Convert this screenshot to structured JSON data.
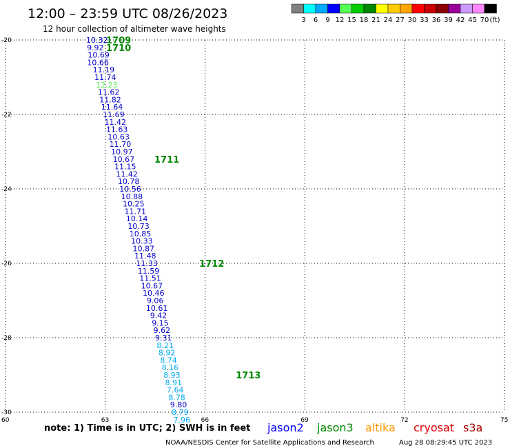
{
  "chart_data": {
    "type": "scatter",
    "title": "12:00 – 23:59 UTC 08/26/2023",
    "subtitle": "12 hour collection of altimeter wave heights",
    "xlim": [
      60,
      75
    ],
    "ylim": [
      -30,
      -20
    ],
    "x_ticks": [
      "60",
      "63",
      "66",
      "69",
      "72",
      "75"
    ],
    "y_ticks": [
      "-20",
      "-22",
      "-24",
      "-26",
      "-28",
      "-30"
    ],
    "grid": true,
    "legend": {
      "colors": [
        "#808080",
        "#00ffff",
        "#00aaff",
        "#0000ff",
        "#55ff55",
        "#00cc00",
        "#008800",
        "#ffff00",
        "#ffcc00",
        "#ffa500",
        "#ff0000",
        "#cc0000",
        "#880000",
        "#990099",
        "#cc99ff",
        "#ff88ff",
        "#000000"
      ],
      "labels": [
        "3",
        "6",
        "9",
        "12",
        "15",
        "18",
        "21",
        "24",
        "27",
        "30",
        "33",
        "36",
        "39",
        "42",
        "45",
        "70"
      ],
      "unit": "(ft)"
    },
    "series": [
      {
        "points": [
          {
            "x": 62.75,
            "y": -20.0,
            "v": "10.32"
          },
          {
            "x": 62.7,
            "y": -20.2,
            "v": "9.92"
          },
          {
            "x": 62.8,
            "y": -20.4,
            "v": "10.69"
          },
          {
            "x": 62.78,
            "y": -20.6,
            "v": "10.66"
          },
          {
            "x": 62.95,
            "y": -20.8,
            "v": "11.19"
          },
          {
            "x": 63.0,
            "y": -21.0,
            "v": "11.74"
          },
          {
            "x": 63.04,
            "y": -21.2,
            "v": "12.23"
          },
          {
            "x": 63.1,
            "y": -21.4,
            "v": "11.62"
          },
          {
            "x": 63.15,
            "y": -21.6,
            "v": "11.82"
          },
          {
            "x": 63.2,
            "y": -21.8,
            "v": "11.64"
          },
          {
            "x": 63.25,
            "y": -22.0,
            "v": "11.69"
          },
          {
            "x": 63.3,
            "y": -22.2,
            "v": "11.42"
          },
          {
            "x": 63.35,
            "y": -22.4,
            "v": "11.63"
          },
          {
            "x": 63.4,
            "y": -22.6,
            "v": "10.63"
          },
          {
            "x": 63.45,
            "y": -22.8,
            "v": "11.70"
          },
          {
            "x": 63.5,
            "y": -23.0,
            "v": "10.97"
          },
          {
            "x": 63.55,
            "y": -23.2,
            "v": "10.67"
          },
          {
            "x": 63.6,
            "y": -23.4,
            "v": "11.15"
          },
          {
            "x": 63.65,
            "y": -23.6,
            "v": "11.42"
          },
          {
            "x": 63.7,
            "y": -23.8,
            "v": "10.78"
          },
          {
            "x": 63.75,
            "y": -24.0,
            "v": "10.56"
          },
          {
            "x": 63.8,
            "y": -24.2,
            "v": "10.88"
          },
          {
            "x": 63.85,
            "y": -24.4,
            "v": "10.25"
          },
          {
            "x": 63.9,
            "y": -24.6,
            "v": "11.71"
          },
          {
            "x": 63.95,
            "y": -24.8,
            "v": "10.14"
          },
          {
            "x": 64.0,
            "y": -25.0,
            "v": "10.73"
          },
          {
            "x": 64.05,
            "y": -25.2,
            "v": "10.85"
          },
          {
            "x": 64.1,
            "y": -25.4,
            "v": "10.33"
          },
          {
            "x": 64.15,
            "y": -25.6,
            "v": "10.87"
          },
          {
            "x": 64.2,
            "y": -25.8,
            "v": "11.48"
          },
          {
            "x": 64.25,
            "y": -26.0,
            "v": "11.33"
          },
          {
            "x": 64.3,
            "y": -26.2,
            "v": "11.59"
          },
          {
            "x": 64.35,
            "y": -26.4,
            "v": "11.51"
          },
          {
            "x": 64.4,
            "y": -26.6,
            "v": "10.67"
          },
          {
            "x": 64.45,
            "y": -26.8,
            "v": "10.46"
          },
          {
            "x": 64.5,
            "y": -27.0,
            "v": "9.06"
          },
          {
            "x": 64.55,
            "y": -27.2,
            "v": "10.61"
          },
          {
            "x": 64.6,
            "y": -27.4,
            "v": "9.42"
          },
          {
            "x": 64.65,
            "y": -27.6,
            "v": "9.15"
          },
          {
            "x": 64.7,
            "y": -27.8,
            "v": "9.62"
          },
          {
            "x": 64.75,
            "y": -28.0,
            "v": "9.31"
          },
          {
            "x": 64.8,
            "y": -28.2,
            "v": "8.21"
          },
          {
            "x": 64.85,
            "y": -28.4,
            "v": "8.92"
          },
          {
            "x": 64.9,
            "y": -28.6,
            "v": "8.74"
          },
          {
            "x": 64.95,
            "y": -28.8,
            "v": "8.16"
          },
          {
            "x": 65.0,
            "y": -29.0,
            "v": "8.93"
          },
          {
            "x": 65.05,
            "y": -29.2,
            "v": "8.91"
          },
          {
            "x": 65.1,
            "y": -29.4,
            "v": "7.64"
          },
          {
            "x": 65.15,
            "y": -29.6,
            "v": "8.78"
          },
          {
            "x": 65.2,
            "y": -29.8,
            "v": "9.80"
          },
          {
            "x": 65.25,
            "y": -30.0,
            "v": "8.79"
          },
          {
            "x": 65.3,
            "y": -30.2,
            "v": "7.96"
          }
        ]
      }
    ],
    "time_labels": [
      {
        "x": 63.4,
        "y": -20.0,
        "label": "1709"
      },
      {
        "x": 63.4,
        "y": -20.2,
        "label": "1710"
      },
      {
        "x": 64.85,
        "y": -23.2,
        "label": "1711"
      },
      {
        "x": 66.2,
        "y": -26.0,
        "label": "1712"
      },
      {
        "x": 67.3,
        "y": -29.0,
        "label": "1713"
      }
    ]
  },
  "footer": {
    "note": "note:  1) Time is in UTC;  2) SWH is in feet",
    "satellites": [
      {
        "name": "jason2",
        "color": "#0000ff"
      },
      {
        "name": "jason3",
        "color": "#008800"
      },
      {
        "name": "altika",
        "color": "#ff9900"
      },
      {
        "name": "cryosat",
        "color": "#dd0000"
      },
      {
        "name": "s3a",
        "color": "#aa0000"
      }
    ],
    "credit": "NOAA/NESDIS Center for Satellite Applications and Research",
    "timestamp": "Aug 28 08:29:45 UTC 2023"
  }
}
